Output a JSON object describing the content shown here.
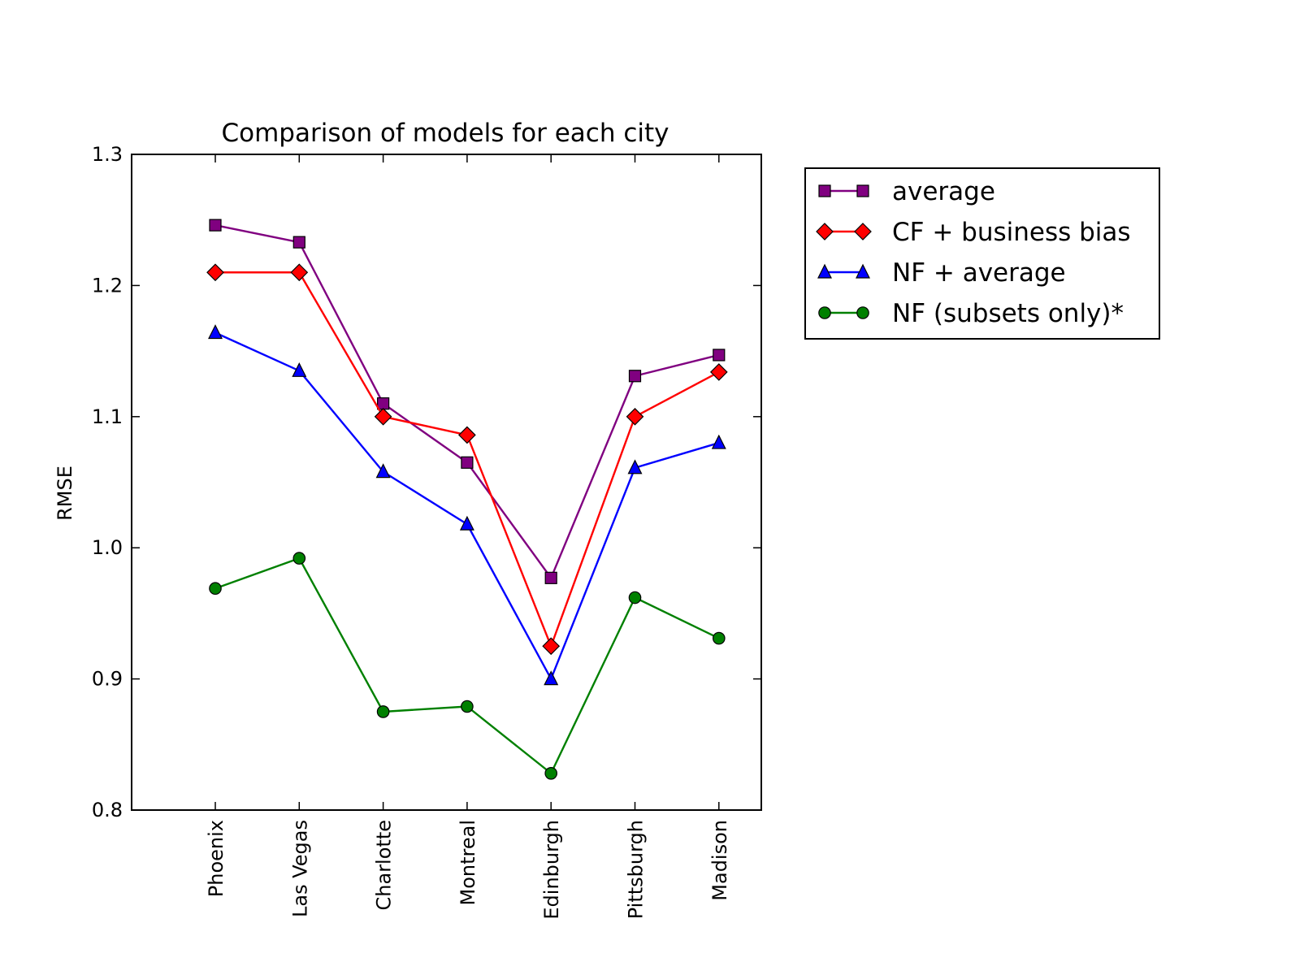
{
  "chart_data": {
    "type": "line",
    "title": "Comparison of models for each city",
    "xlabel": "",
    "ylabel": "RMSE",
    "categories": [
      "Phoenix",
      "Las Vegas",
      "Charlotte",
      "Montreal",
      "Edinburgh",
      "Pittsburgh",
      "Madison"
    ],
    "ylim": [
      0.8,
      1.3
    ],
    "yticks": [
      "0.8",
      "0.9",
      "1.0",
      "1.1",
      "1.2",
      "1.3"
    ],
    "grid": false,
    "legend_position": "outside-top-right",
    "series": [
      {
        "name": "average",
        "color": "#800080",
        "marker": "square",
        "values": [
          1.246,
          1.233,
          1.11,
          1.065,
          0.977,
          1.131,
          1.147
        ]
      },
      {
        "name": "CF + business bias",
        "color": "#ff0000",
        "marker": "diamond",
        "values": [
          1.21,
          1.21,
          1.1,
          1.086,
          0.925,
          1.1,
          1.134
        ]
      },
      {
        "name": "NF + average",
        "color": "#0000ff",
        "marker": "triangle",
        "values": [
          1.164,
          1.135,
          1.058,
          1.018,
          0.9,
          1.061,
          1.08
        ]
      },
      {
        "name": "NF (subsets only)*",
        "color": "#008000",
        "marker": "circle",
        "values": [
          0.969,
          0.992,
          0.875,
          0.879,
          0.828,
          0.962,
          0.931
        ]
      }
    ]
  }
}
